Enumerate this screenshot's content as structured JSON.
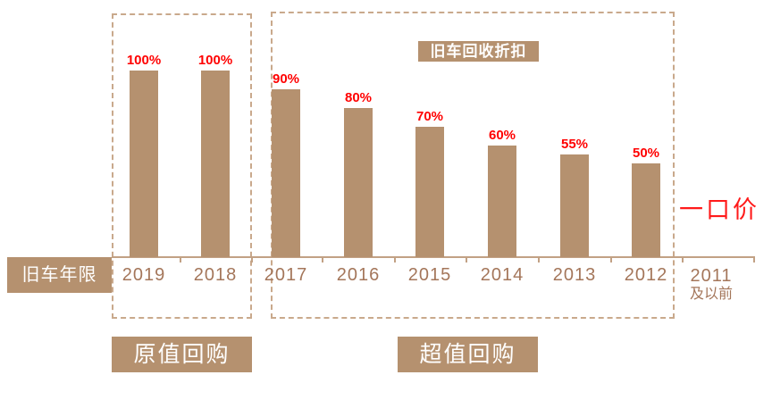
{
  "title_badge": "旧车回收折扣",
  "axis_label": "旧车年限",
  "fixed_price": "一口价",
  "group_badges": {
    "original": "原值回购",
    "premium": "超值回购"
  },
  "last_category": {
    "line1": "2011",
    "line2": "及以前"
  },
  "colors": {
    "bar": "#b5916f",
    "badge_bg": "#b5916f",
    "dashed_border": "#c9a98c",
    "axis": "#c2a184",
    "year_text": "#a4765a",
    "percent_text": "#ff0000",
    "fixed_price_text": "#ff1a1a",
    "badge_text": "#ffffff"
  },
  "chart_data": {
    "type": "bar",
    "title": "旧车回收折扣",
    "xlabel": "旧车年限",
    "ylabel": "",
    "ylim": [
      0,
      100
    ],
    "grid": false,
    "legend": "none",
    "categories": [
      "2019",
      "2018",
      "2017",
      "2016",
      "2015",
      "2014",
      "2013",
      "2012",
      "2011及以前"
    ],
    "values": [
      100,
      100,
      90,
      80,
      70,
      60,
      55,
      50,
      null
    ],
    "value_labels": [
      "100%",
      "100%",
      "90%",
      "80%",
      "70%",
      "60%",
      "55%",
      "50%",
      ""
    ],
    "groups": [
      {
        "label": "原值回购",
        "categories": [
          "2019",
          "2018"
        ]
      },
      {
        "label": "超值回购",
        "categories": [
          "2017",
          "2016",
          "2015",
          "2014",
          "2013",
          "2012"
        ]
      }
    ],
    "annotations": [
      "一口价 applies to 2011及以前"
    ]
  }
}
